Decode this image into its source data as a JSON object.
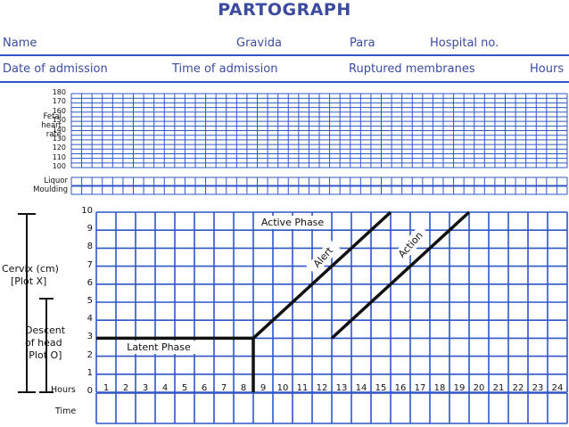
{
  "title": "PARTOGRAPH",
  "header": {
    "name": "Name",
    "gravida": "Gravida",
    "para": "Para",
    "hospital_no": "Hospital no.",
    "date_of_admission": "Date of admission",
    "time_of_admission": "Time of admission",
    "ruptured_membranes": "Ruptured membranes",
    "hours": "Hours"
  },
  "fhr": {
    "label_line1": "Fetal",
    "label_line2": "heart",
    "label_line3": "rate",
    "ticks": [
      "180",
      "170",
      "160",
      "150",
      "140",
      "130",
      "120",
      "110",
      "100"
    ]
  },
  "liquor": {
    "label1": "Liquor",
    "label2": "Moulding"
  },
  "cervix_chart": {
    "cervix_label_1": "Cervix (cm)",
    "cervix_label_2": "[Plot X]",
    "descent_label_1": "Descent",
    "descent_label_2": "of head",
    "descent_label_3": "[Plot O]",
    "hours_label": "Hours",
    "time_label": "Time",
    "y_ticks": [
      "10",
      "9",
      "8",
      "7",
      "6",
      "5",
      "4",
      "3",
      "2",
      "1",
      "0"
    ],
    "hour_ticks": [
      "1",
      "2",
      "3",
      "4",
      "5",
      "6",
      "7",
      "8",
      "9",
      "10",
      "11",
      "12",
      "13",
      "14",
      "15",
      "16",
      "17",
      "18",
      "19",
      "20",
      "21",
      "22",
      "23",
      "24"
    ],
    "latent_phase": "Latent Phase",
    "active_phase": "Active Phase",
    "alert": "Alert",
    "action": "Action",
    "line_color": "#2f55c8"
  },
  "chart_data": {
    "type": "line",
    "xlabel": "Hours",
    "ylabel": "Cervix (cm)",
    "xlim": [
      0,
      24
    ],
    "ylim": [
      0,
      10
    ],
    "series": [
      {
        "name": "Latent Phase",
        "x": [
          0,
          8
        ],
        "y": [
          3,
          3
        ]
      },
      {
        "name": "Alert",
        "x": [
          8,
          15
        ],
        "y": [
          3,
          10
        ]
      },
      {
        "name": "Action",
        "x": [
          12,
          19
        ],
        "y": [
          3,
          10
        ]
      }
    ]
  }
}
